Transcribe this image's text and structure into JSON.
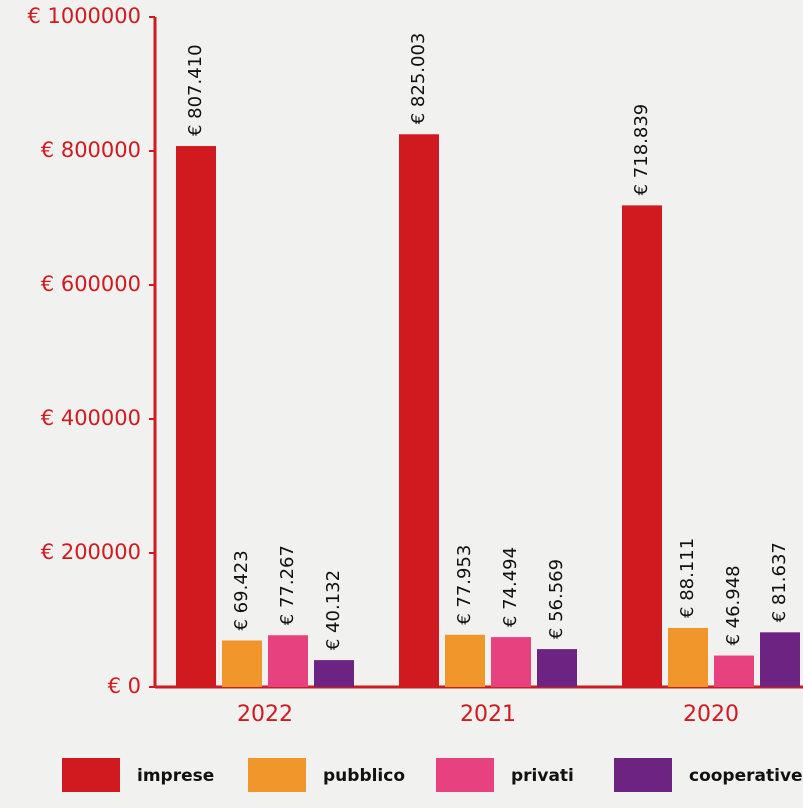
{
  "chart_data": {
    "type": "bar",
    "categories": [
      "2022",
      "2021",
      "2020"
    ],
    "series": [
      {
        "name": "imprese",
        "color": "#d01a1f",
        "values": [
          807410,
          825003,
          718839
        ],
        "value_labels": [
          "€ 807.410",
          "€ 825.003",
          "€ 718.839"
        ]
      },
      {
        "name": "pubblico",
        "color": "#f0962b",
        "values": [
          69423,
          77953,
          88111
        ],
        "value_labels": [
          "€ 69.423",
          "€ 77.953",
          "€ 88.111"
        ]
      },
      {
        "name": "privati",
        "color": "#e8417f",
        "values": [
          77267,
          74494,
          46948
        ],
        "value_labels": [
          "€ 77.267",
          "€ 74.494",
          "€ 46.948"
        ]
      },
      {
        "name": "cooperative",
        "color": "#6d2382",
        "values": [
          40132,
          56569,
          81637
        ],
        "value_labels": [
          "€ 40.132",
          "€ 56.569",
          "€ 81.637"
        ]
      }
    ],
    "ylim": [
      0,
      1000000
    ],
    "yticks": [
      {
        "value": 0,
        "label": "€ 0"
      },
      {
        "value": 200000,
        "label": "€ 200000"
      },
      {
        "value": 400000,
        "label": "€ 400000"
      },
      {
        "value": 600000,
        "label": "€ 600000"
      },
      {
        "value": 800000,
        "label": "€ 800000"
      },
      {
        "value": 1000000,
        "label": "€ 1000000"
      }
    ],
    "legend": "bottom"
  }
}
